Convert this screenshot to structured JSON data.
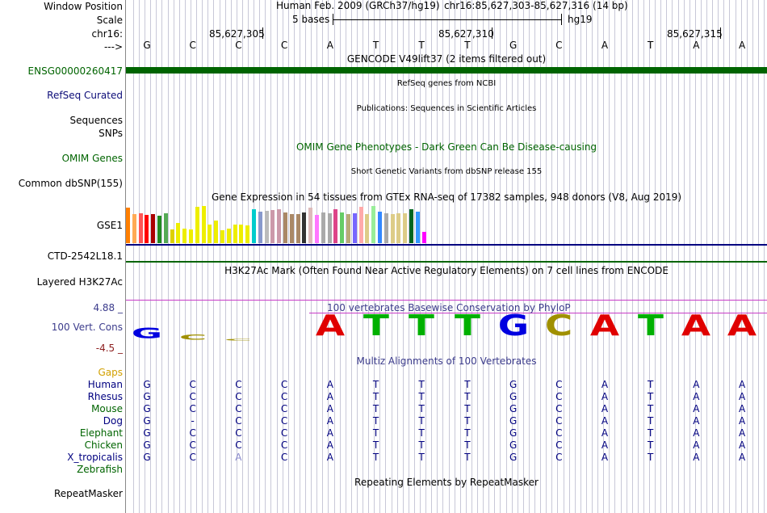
{
  "ruler": {
    "window_position_label": "Window Position",
    "scale_label": "Scale",
    "chrom_label": "chr16:",
    "arrow_label": "--->",
    "assembly": "Human Feb. 2009 (GRCh37/hg19)",
    "position": "chr16:85,627,303-85,627,316 (14 bp)",
    "scale_text": "5 bases",
    "db": "hg19",
    "coords": [
      "85,627,305",
      "85,627,310",
      "85,627,315"
    ],
    "bases": [
      "G",
      "C",
      "C",
      "C",
      "A",
      "T",
      "T",
      "T",
      "G",
      "C",
      "A",
      "T",
      "A",
      "A"
    ]
  },
  "tracks": {
    "gencode": {
      "title": "GENCODE V49lift37 (2 items filtered out)",
      "label": "ENSG00000260417",
      "label_color": "#006400",
      "bar_color": "#006400"
    },
    "refseq": {
      "title": "RefSeq genes from NCBI",
      "label": "RefSeq Curated",
      "label_color": "#0c0c78"
    },
    "publications": {
      "title": "Publications: Sequences in Scientific Articles",
      "label1": "Sequences",
      "label2": "SNPs"
    },
    "omim": {
      "title": "OMIM Gene Phenotypes - Dark Green Can Be Disease-causing",
      "label": "OMIM Genes",
      "color": "#006400"
    },
    "dbsnp": {
      "title": "Short Genetic Variants from dbSNP release 155",
      "label": "Common dbSNP(155)"
    },
    "gtex": {
      "title": "Gene Expression in 54 tissues from GTEx RNA-seq of 17382 samples, 948 donors (V8, Aug 2019)",
      "label": "GSE1",
      "line_color": "#000080"
    },
    "ctd": {
      "label": "CTD-2542L18.1",
      "line_color": "#006400"
    },
    "h3k27ac": {
      "title": "H3K27Ac Mark (Often Found Near Active Regulatory Elements) on 7 cell lines from ENCODE",
      "label": "Layered H3K27Ac"
    },
    "conservation": {
      "title": "100 vertebrates Basewise Conservation by PhyloP",
      "label": "100 Vert. Cons",
      "max_label": "4.88 _",
      "min_label": "-4.5 _",
      "label_color": "#3c3c8c",
      "title_color": "#3c3c8c",
      "max_color": "#3c3c8c",
      "min_color": "#8c1e1e",
      "line_color": "#c83cc8"
    },
    "multiz": {
      "title": "Multiz Alignments of 100 Vertebrates",
      "title_color": "#3c3c8c",
      "gaps_label": "Gaps",
      "gaps_color": "#d2a000",
      "species": [
        {
          "name": "Human",
          "color": "#000080",
          "seq": [
            "G",
            "C",
            "C",
            "C",
            "A",
            "T",
            "T",
            "T",
            "G",
            "C",
            "A",
            "T",
            "A",
            "A"
          ]
        },
        {
          "name": "Rhesus",
          "color": "#000080",
          "seq": [
            "G",
            "C",
            "C",
            "C",
            "A",
            "T",
            "T",
            "T",
            "G",
            "C",
            "A",
            "T",
            "A",
            "A"
          ]
        },
        {
          "name": "Mouse",
          "color": "#006400",
          "seq": [
            "G",
            "C",
            "C",
            "C",
            "A",
            "T",
            "T",
            "T",
            "G",
            "C",
            "A",
            "T",
            "A",
            "A"
          ]
        },
        {
          "name": "Dog",
          "color": "#000080",
          "seq": [
            "G",
            "-",
            "C",
            "C",
            "A",
            "T",
            "T",
            "T",
            "G",
            "C",
            "A",
            "T",
            "A",
            "A"
          ]
        },
        {
          "name": "Elephant",
          "color": "#006400",
          "seq": [
            "G",
            "C",
            "C",
            "C",
            "A",
            "T",
            "T",
            "T",
            "G",
            "C",
            "A",
            "T",
            "A",
            "A"
          ]
        },
        {
          "name": "Chicken",
          "color": "#006400",
          "seq": [
            "G",
            "C",
            "C",
            "C",
            "A",
            "T",
            "T",
            "T",
            "G",
            "C",
            "A",
            "T",
            "A",
            "A"
          ]
        },
        {
          "name": "X_tropicalis",
          "color": "#000080",
          "seq": [
            "G",
            "C",
            "A",
            "C",
            "A",
            "T",
            "T",
            "T",
            "G",
            "C",
            "A",
            "T",
            "A",
            "A"
          ]
        },
        {
          "name": "Zebrafish",
          "color": "#006400",
          "seq": []
        }
      ]
    },
    "repeatmasker": {
      "title": "Repeating Elements by RepeatMasker",
      "label": "RepeatMasker"
    }
  },
  "conservation_logo": [
    {
      "base": "G",
      "color": "#0000e0",
      "scale": 0.5
    },
    {
      "base": "C",
      "color": "#a09000",
      "scale": 0.25
    },
    {
      "base": "C",
      "color": "#a09000",
      "scale": 0.08
    },
    {
      "base": "",
      "color": "#a09000",
      "scale": 0
    },
    {
      "base": "A",
      "color": "#e00000",
      "scale": 1
    },
    {
      "base": "T",
      "color": "#00b000",
      "scale": 1
    },
    {
      "base": "T",
      "color": "#00b000",
      "scale": 1
    },
    {
      "base": "T",
      "color": "#00b000",
      "scale": 1
    },
    {
      "base": "G",
      "color": "#0000e0",
      "scale": 1
    },
    {
      "base": "C",
      "color": "#a09000",
      "scale": 1
    },
    {
      "base": "A",
      "color": "#e00000",
      "scale": 1
    },
    {
      "base": "T",
      "color": "#00b000",
      "scale": 1
    },
    {
      "base": "A",
      "color": "#e00000",
      "scale": 1
    },
    {
      "base": "A",
      "color": "#e00000",
      "scale": 1
    }
  ],
  "gtex_bars": [
    {
      "value": 0.95,
      "color": "#ff7f00"
    },
    {
      "value": 0.78,
      "color": "#ffaa55"
    },
    {
      "value": 0.8,
      "color": "#ff5555"
    },
    {
      "value": 0.76,
      "color": "#ff0000"
    },
    {
      "value": 0.78,
      "color": "#aa0000"
    },
    {
      "value": 0.74,
      "color": "#228b22"
    },
    {
      "value": 0.8,
      "color": "#55aa55"
    },
    {
      "value": 0.38,
      "color": "#ddd000"
    },
    {
      "value": 0.55,
      "color": "#eeee00"
    },
    {
      "value": 0.4,
      "color": "#eeee00"
    },
    {
      "value": 0.38,
      "color": "#eeee00"
    },
    {
      "value": 0.98,
      "color": "#eeee00"
    },
    {
      "value": 1.0,
      "color": "#eeee00"
    },
    {
      "value": 0.5,
      "color": "#eeee00"
    },
    {
      "value": 0.6,
      "color": "#eeee00"
    },
    {
      "value": 0.34,
      "color": "#eeee00"
    },
    {
      "value": 0.4,
      "color": "#eeee00"
    },
    {
      "value": 0.5,
      "color": "#eeee00"
    },
    {
      "value": 0.5,
      "color": "#eeee00"
    },
    {
      "value": 0.48,
      "color": "#eeee00"
    },
    {
      "value": 0.92,
      "color": "#00cccc"
    },
    {
      "value": 0.85,
      "color": "#8899cc"
    },
    {
      "value": 0.88,
      "color": "#bbbbbb"
    },
    {
      "value": 0.9,
      "color": "#cc99aa"
    },
    {
      "value": 0.92,
      "color": "#cc99aa"
    },
    {
      "value": 0.82,
      "color": "#aa8866"
    },
    {
      "value": 0.78,
      "color": "#aa8866"
    },
    {
      "value": 0.78,
      "color": "#aa8866"
    },
    {
      "value": 0.82,
      "color": "#333333"
    },
    {
      "value": 0.95,
      "color": "#ddbbbb"
    },
    {
      "value": 0.75,
      "color": "#ff77ff"
    },
    {
      "value": 0.82,
      "color": "#aaaaaa"
    },
    {
      "value": 0.8,
      "color": "#aaaaaa"
    },
    {
      "value": 0.92,
      "color": "#dd4488"
    },
    {
      "value": 0.82,
      "color": "#66cc66"
    },
    {
      "value": 0.78,
      "color": "#bbaa77"
    },
    {
      "value": 0.8,
      "color": "#7766ff"
    },
    {
      "value": 0.98,
      "color": "#ffaaaa"
    },
    {
      "value": 0.78,
      "color": "#ddcc88"
    },
    {
      "value": 1.0,
      "color": "#99ee99"
    },
    {
      "value": 0.85,
      "color": "#3388ff"
    },
    {
      "value": 0.8,
      "color": "#aaaaaa"
    },
    {
      "value": 0.78,
      "color": "#ddcc88"
    },
    {
      "value": 0.8,
      "color": "#ddcc88"
    },
    {
      "value": 0.8,
      "color": "#ddcc88"
    },
    {
      "value": 0.92,
      "color": "#006622"
    },
    {
      "value": 0.85,
      "color": "#3399ff"
    },
    {
      "value": 0.3,
      "color": "#ff00ff"
    }
  ]
}
